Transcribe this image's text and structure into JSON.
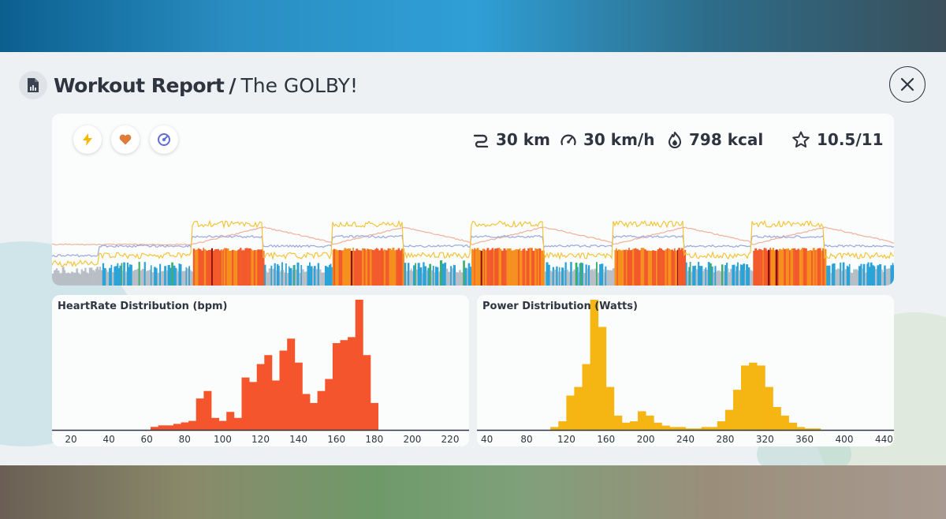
{
  "header": {
    "title": "Workout Report",
    "separator": "/",
    "workout_name": "The GOLBY!",
    "report_icon": "report-document-icon",
    "close_icon": "close-icon"
  },
  "toggles": [
    {
      "name": "power-toggle",
      "icon": "lightning-icon",
      "color": "#f5b800"
    },
    {
      "name": "heartrate-toggle",
      "icon": "heart-icon",
      "color": "#e07b39"
    },
    {
      "name": "cadence-toggle",
      "icon": "cadence-icon",
      "color": "#5b6fd6"
    }
  ],
  "stats": {
    "distance": "30 km",
    "speed": "30 km/h",
    "calories": "798 kcal",
    "rating": "10.5/11"
  },
  "colors": {
    "zone_gray": "#b8bec6",
    "zone_blue": "#2aa3d8",
    "zone_green": "#3fae6a",
    "zone_orange": "#f5901e",
    "zone_red": "#f25a2c",
    "zone_dark": "#8a1010",
    "power_line": "#f2c53b",
    "hr_line": "#f0b09a",
    "cadence_line": "#9aa8de",
    "hr_bars": "#f5552c",
    "power_bars": "#f5b512"
  },
  "chart_data": [
    {
      "type": "bar",
      "title": "HeartRate Distribution (bpm)",
      "xlabel": "bpm",
      "xlim": [
        10,
        230
      ],
      "bin_width": 4,
      "bins": [
        62,
        66,
        70,
        74,
        78,
        82,
        86,
        90,
        94,
        98,
        102,
        106,
        110,
        114,
        118,
        122,
        126,
        130,
        134,
        138,
        142,
        146,
        150,
        154,
        158,
        162,
        166,
        170,
        174,
        178
      ],
      "values": [
        2,
        3,
        3,
        4,
        5,
        6,
        21,
        26,
        8,
        6,
        12,
        8,
        35,
        32,
        44,
        50,
        33,
        53,
        61,
        45,
        24,
        18,
        26,
        34,
        58,
        60,
        62,
        87,
        50,
        18
      ],
      "ticks": [
        20,
        40,
        60,
        80,
        100,
        120,
        140,
        160,
        180,
        200,
        220
      ]
    },
    {
      "type": "bar",
      "title": "Power Distribution (Watts)",
      "xlabel": "Watts",
      "xlim": [
        30,
        450
      ],
      "bin_width": 8,
      "bins": [
        104,
        112,
        120,
        128,
        136,
        144,
        152,
        160,
        168,
        176,
        184,
        192,
        200,
        208,
        216,
        224,
        232,
        240,
        248,
        256,
        264,
        272,
        280,
        288,
        296,
        304,
        312,
        320,
        328,
        336,
        344,
        352,
        360,
        368
      ],
      "values": [
        2,
        6,
        24,
        30,
        46,
        91,
        72,
        30,
        10,
        5,
        6,
        13,
        10,
        5,
        3,
        2,
        2,
        1,
        1,
        2,
        2,
        6,
        14,
        28,
        45,
        47,
        45,
        30,
        16,
        10,
        5,
        2,
        1,
        1
      ],
      "ticks": [
        40,
        80,
        120,
        160,
        200,
        240,
        280,
        320,
        360,
        400,
        440
      ]
    }
  ]
}
